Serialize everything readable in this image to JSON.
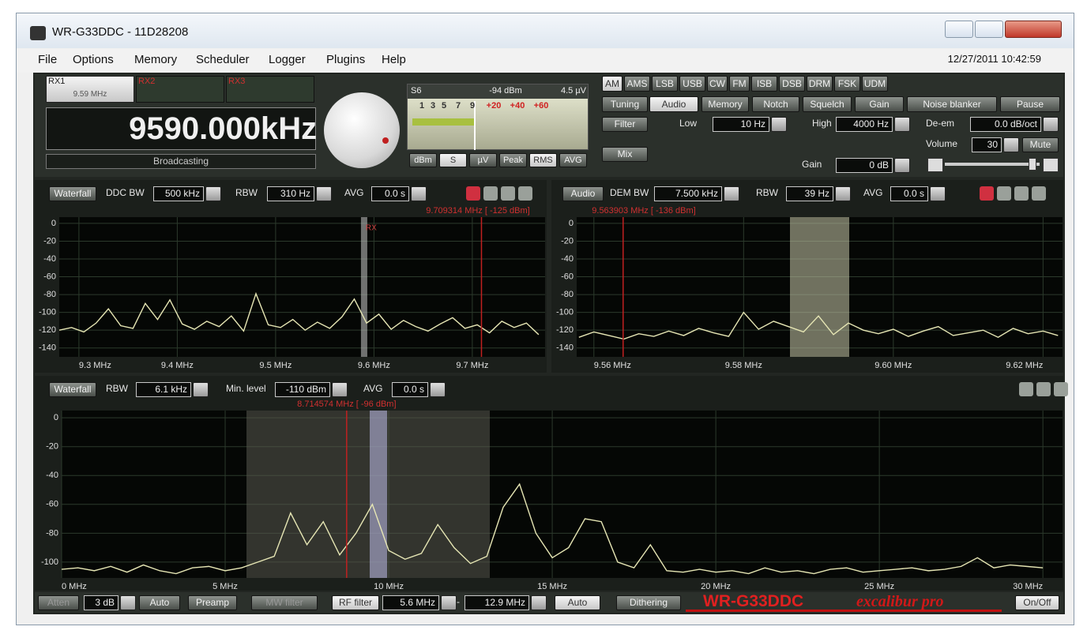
{
  "window": {
    "title": "WR-G33DDC - 11D28208"
  },
  "menu": {
    "items": [
      "File",
      "Options",
      "Memory",
      "Scheduler",
      "Logger",
      "Plugins",
      "Help"
    ],
    "datetime": "12/27/2011 10:42:59"
  },
  "receivers": [
    {
      "name": "RX1",
      "freq": "9.59 MHz"
    },
    {
      "name": "RX2"
    },
    {
      "name": "RX3"
    }
  ],
  "frequency": {
    "value": "9590.000",
    "unit": "kHz",
    "band": "Broadcasting"
  },
  "smeter": {
    "s": "S6",
    "dbm": "-94 dBm",
    "uv": "4.5 µV",
    "scale": [
      "1",
      "3",
      "5",
      "7",
      "9",
      "+20",
      "+40",
      "+60"
    ],
    "buttons": [
      "dBm",
      "S",
      "µV",
      "Peak",
      "RMS",
      "AVG"
    ]
  },
  "modes": [
    "AM",
    "AMS",
    "LSB",
    "USB",
    "CW",
    "FM",
    "ISB",
    "DSB",
    "DRM",
    "FSK",
    "UDM"
  ],
  "tabs": [
    "Tuning",
    "Audio",
    "Memory",
    "Notch",
    "Squelch",
    "Gain",
    "Noise blanker",
    "Pause"
  ],
  "audio": {
    "filter": "Filter",
    "low_label": "Low",
    "low": "10 Hz",
    "high_label": "High",
    "high": "4000 Hz",
    "deem_label": "De-em",
    "deem": "0.0 dB/oct",
    "volume_label": "Volume",
    "volume": "30",
    "mute": "Mute",
    "mix": "Mix",
    "gain_label": "Gain",
    "gain": "0 dB"
  },
  "spectra": [
    {
      "type": "line",
      "controls": [
        "Waterfall",
        "DDC BW",
        "500 kHz",
        "RBW",
        "310 Hz",
        "AVG",
        "0.0 s"
      ],
      "marker": {
        "label": "9.709314 MHz [ -125 dBm]",
        "x": 9.709314
      },
      "rx": {
        "label": "RX",
        "x": 9.59
      },
      "xlim": [
        9.28,
        9.774
      ],
      "ylim": [
        -150,
        7
      ],
      "yticks": [
        0,
        -20,
        -40,
        -60,
        -80,
        -100,
        -120,
        -140
      ],
      "xticks": [
        {
          "value": 9.3,
          "label": "9.3 MHz"
        },
        {
          "value": 9.4,
          "label": "9.4 MHz"
        },
        {
          "value": 9.5,
          "label": "9.5 MHz"
        },
        {
          "value": 9.6,
          "label": "9.6 MHz"
        },
        {
          "value": 9.7,
          "label": "9.7 MHz"
        }
      ],
      "grid": true,
      "color": "#e6e6b4",
      "x": [
        9.28,
        9.2925,
        9.305,
        9.3175,
        9.33,
        9.3425,
        9.355,
        9.3675,
        9.38,
        9.3925,
        9.405,
        9.4175,
        9.43,
        9.4425,
        9.455,
        9.4675,
        9.48,
        9.4925,
        9.505,
        9.5175,
        9.53,
        9.5425,
        9.555,
        9.5675,
        9.58,
        9.5925,
        9.605,
        9.6175,
        9.63,
        9.6425,
        9.655,
        9.6675,
        9.68,
        9.6925,
        9.705,
        9.7175,
        9.73,
        9.7425,
        9.755,
        9.7675
      ],
      "values": [
        -120,
        -117,
        -122,
        -112,
        -96,
        -115,
        -118,
        -90,
        -108,
        -86,
        -113,
        -119,
        -110,
        -116,
        -104,
        -121,
        -79,
        -114,
        -117,
        -108,
        -120,
        -111,
        -118,
        -105,
        -85,
        -112,
        -102,
        -119,
        -109,
        -116,
        -121,
        -113,
        -106,
        -118,
        -114,
        -123,
        -110,
        -117,
        -112,
        -125
      ]
    },
    {
      "type": "line",
      "controls": [
        "Audio",
        "DEM BW",
        "7.500 kHz",
        "RBW",
        "39 Hz",
        "AVG",
        "0.0 s"
      ],
      "marker": {
        "label": "9.563903 MHz [ -136 dBm]",
        "x": 9.563903
      },
      "xlim": [
        9.5577,
        9.6226
      ],
      "ylim": [
        -150,
        7
      ],
      "yticks": [
        0,
        -20,
        -40,
        -60,
        -80,
        -100,
        -120,
        -140
      ],
      "xticks": [
        {
          "value": 9.56,
          "label": "9.56 MHz"
        },
        {
          "value": 9.58,
          "label": "9.58 MHz"
        },
        {
          "value": 9.6,
          "label": "9.60 MHz"
        },
        {
          "value": 9.62,
          "label": "9.62 MHz"
        }
      ],
      "grid": true,
      "color": "#e6e6b4",
      "x": [
        9.558,
        9.56,
        9.562,
        9.564,
        9.566,
        9.568,
        9.57,
        9.572,
        9.574,
        9.576,
        9.578,
        9.58,
        9.582,
        9.584,
        9.586,
        9.588,
        9.59,
        9.592,
        9.594,
        9.596,
        9.598,
        9.6,
        9.602,
        9.604,
        9.606,
        9.608,
        9.61,
        9.612,
        9.614,
        9.616,
        9.618,
        9.62,
        9.622
      ],
      "values": [
        -128,
        -122,
        -126,
        -130,
        -124,
        -127,
        -121,
        -126,
        -118,
        -123,
        -127,
        -100,
        -119,
        -110,
        -116,
        -122,
        -104,
        -125,
        -112,
        -120,
        -124,
        -119,
        -127,
        -121,
        -116,
        -126,
        -123,
        -120,
        -128,
        -118,
        -124,
        -121,
        -126
      ]
    },
    {
      "type": "line",
      "controls": [
        "Waterfall",
        "RBW",
        "6.1 kHz",
        "Min. level",
        "-110 dBm",
        "AVG",
        "0.0 s"
      ],
      "marker": {
        "label": "8.714574 MHz [ -96 dBm]",
        "x": 8.714574
      },
      "xlim": [
        0,
        30.6
      ],
      "ylim": [
        -111,
        5
      ],
      "yticks": [
        0,
        -20,
        -40,
        -60,
        -80,
        -100
      ],
      "xticks": [
        {
          "value": 0,
          "label": "0 MHz"
        },
        {
          "value": 5,
          "label": "5 MHz"
        },
        {
          "value": 10,
          "label": "10 MHz"
        },
        {
          "value": 15,
          "label": "15 MHz"
        },
        {
          "value": 20,
          "label": "20 MHz"
        },
        {
          "value": 25,
          "label": "25 MHz"
        },
        {
          "value": 30,
          "label": "30 MHz"
        }
      ],
      "grid": true,
      "color": "#e6e6b4",
      "x": [
        0,
        0.5,
        1,
        1.5,
        2,
        2.5,
        3,
        3.5,
        4,
        4.5,
        5,
        5.5,
        6,
        6.5,
        7,
        7.5,
        8,
        8.5,
        9,
        9.5,
        10,
        10.5,
        11,
        11.5,
        12,
        12.5,
        13,
        13.5,
        14,
        14.5,
        15,
        15.5,
        16,
        16.5,
        17,
        17.5,
        18,
        18.5,
        19,
        19.5,
        20,
        20.5,
        21,
        21.5,
        22,
        22.5,
        23,
        23.5,
        24,
        24.5,
        25,
        25.5,
        26,
        26.5,
        27,
        27.5,
        28,
        28.5,
        29,
        29.5,
        30
      ],
      "values": [
        -105,
        -104,
        -106,
        -103,
        -107,
        -102,
        -106,
        -108,
        -104,
        -103,
        -106,
        -104,
        -100,
        -96,
        -66,
        -88,
        -72,
        -95,
        -80,
        -60,
        -92,
        -98,
        -94,
        -74,
        -90,
        -101,
        -96,
        -62,
        -46,
        -80,
        -97,
        -90,
        -70,
        -72,
        -100,
        -104,
        -88,
        -106,
        -107,
        -105,
        -107,
        -106,
        -108,
        -104,
        -107,
        -106,
        -108,
        -105,
        -104,
        -107,
        -106,
        -105,
        -104,
        -106,
        -105,
        -103,
        -97,
        -104,
        -102,
        -103,
        -104
      ]
    }
  ],
  "bottom": {
    "atten": "Atten",
    "atten_value": "3 dB",
    "auto1": "Auto",
    "preamp": "Preamp",
    "mw_filter": "MW filter",
    "rf_filter": "RF filter",
    "rf_low": "5.6 MHz",
    "dash": "-",
    "rf_high": "12.9 MHz",
    "auto2": "Auto",
    "dithering": "Dithering",
    "logo": "WR-G33DDC",
    "logo_sub": "excalibur pro",
    "onoff": "On/Off"
  }
}
